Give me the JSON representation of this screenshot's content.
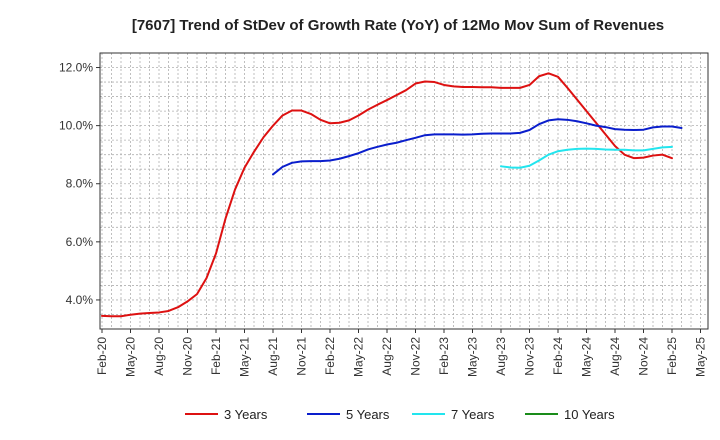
{
  "chart_data": {
    "type": "line",
    "title": "[7607]  Trend of StDev of Growth Rate (YoY) of 12Mo Mov Sum of Revenues",
    "xlabel": "",
    "ylabel": "",
    "ylim": [
      3.0,
      12.5
    ],
    "yticks": [
      4.0,
      6.0,
      8.0,
      10.0,
      12.0
    ],
    "ytick_labels": [
      "4.0%",
      "6.0%",
      "8.0%",
      "10.0%",
      "12.0%"
    ],
    "x_tick_labels": [
      "Feb-20",
      "May-20",
      "Aug-20",
      "Nov-20",
      "Feb-21",
      "May-21",
      "Aug-21",
      "Nov-21",
      "Feb-22",
      "May-22",
      "Aug-22",
      "Nov-22",
      "Feb-23",
      "May-23",
      "Aug-23",
      "Nov-23",
      "Feb-24",
      "May-24",
      "Aug-24",
      "Nov-24",
      "Feb-25",
      "May-25"
    ],
    "x_start": "Feb-20",
    "x_end": "May-25",
    "grid": true,
    "legend_position": "bottom",
    "series": [
      {
        "name": "3 Years",
        "color": "#dd1111",
        "start_index": 0,
        "values": [
          3.45,
          3.44,
          3.44,
          3.49,
          3.53,
          3.55,
          3.57,
          3.62,
          3.75,
          3.95,
          4.2,
          4.75,
          5.6,
          6.8,
          7.8,
          8.55,
          9.1,
          9.6,
          10.0,
          10.35,
          10.52,
          10.52,
          10.4,
          10.2,
          10.08,
          10.1,
          10.18,
          10.35,
          10.55,
          10.72,
          10.88,
          11.05,
          11.22,
          11.45,
          11.52,
          11.5,
          11.4,
          11.35,
          11.33,
          11.33,
          11.32,
          11.32,
          11.3,
          11.3,
          11.3,
          11.4,
          11.7,
          11.8,
          11.68,
          11.3,
          10.9,
          10.5,
          10.1,
          9.7,
          9.3,
          9.0,
          8.88,
          8.9,
          8.97,
          9.0,
          8.88
        ]
      },
      {
        "name": "5 Years",
        "color": "#0a1ecc",
        "start_index": 18,
        "values": [
          8.32,
          8.58,
          8.72,
          8.77,
          8.78,
          8.78,
          8.8,
          8.86,
          8.95,
          9.05,
          9.18,
          9.27,
          9.35,
          9.41,
          9.5,
          9.58,
          9.67,
          9.7,
          9.7,
          9.7,
          9.69,
          9.7,
          9.72,
          9.73,
          9.73,
          9.73,
          9.75,
          9.85,
          10.05,
          10.18,
          10.22,
          10.2,
          10.15,
          10.08,
          10.0,
          9.95,
          9.88,
          9.86,
          9.85,
          9.86,
          9.94,
          9.97,
          9.97,
          9.92
        ]
      },
      {
        "name": "7 Years",
        "color": "#22e5ee",
        "start_index": 42,
        "values": [
          8.6,
          8.56,
          8.55,
          8.62,
          8.8,
          9.0,
          9.12,
          9.17,
          9.2,
          9.21,
          9.2,
          9.18,
          9.17,
          9.17,
          9.15,
          9.15,
          9.2,
          9.25,
          9.27
        ]
      },
      {
        "name": "10 Years",
        "color": "#1a8c1a",
        "start_index": 0,
        "values": []
      }
    ]
  }
}
